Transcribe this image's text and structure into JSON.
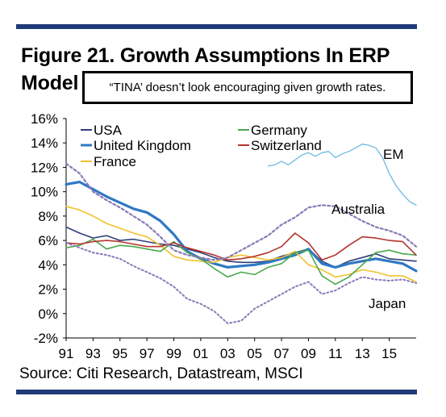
{
  "figure": {
    "title_line1": "Figure 21. Growth Assumptions In ERP",
    "title_line2": "Model",
    "callout": "“TINA’ doesn’t look encouraging given growth rates.",
    "source": "Source: Citi Research, Datastream, MSCI",
    "rule_color": "#1f3a78"
  },
  "chart_data": {
    "type": "line",
    "title": "",
    "xlabel": "",
    "ylabel": "",
    "xlim": [
      1991,
      2017
    ],
    "ylim": [
      -2,
      16
    ],
    "yticks": [
      "16%",
      "14%",
      "12%",
      "10%",
      "8%",
      "6%",
      "4%",
      "2%",
      "0%",
      "-2%"
    ],
    "xticks": [
      "91",
      "93",
      "95",
      "97",
      "99",
      "01",
      "03",
      "05",
      "07",
      "09",
      "11",
      "13",
      "15"
    ],
    "grid": false,
    "legend": [
      {
        "name": "USA",
        "color": "#2e3f7a"
      },
      {
        "name": "United Kingdom",
        "color": "#2f78c4"
      },
      {
        "name": "France",
        "color": "#f2c12e"
      },
      {
        "name": "Germany",
        "color": "#4aa84c"
      },
      {
        "name": "Switzerland",
        "color": "#b5342e"
      }
    ],
    "annotations": [
      "EM",
      "Australia",
      "Japan"
    ],
    "series": [
      {
        "name": "USA",
        "color": "#2e3f7a",
        "dash": "",
        "width": 1.6,
        "x": [
          1991,
          1992,
          1993,
          1994,
          1995,
          1996,
          1997,
          1998,
          1999,
          2000,
          2001,
          2002,
          2003,
          2004,
          2005,
          2006,
          2007,
          2008,
          2009,
          2010,
          2011,
          2012,
          2013,
          2014,
          2015,
          2016,
          2017
        ],
        "y": [
          7.1,
          6.6,
          6.2,
          6.4,
          6.0,
          6.1,
          5.9,
          5.7,
          5.6,
          5.3,
          5.0,
          4.6,
          4.3,
          4.2,
          4.2,
          4.3,
          4.7,
          5.0,
          5.3,
          4.3,
          3.8,
          4.3,
          4.6,
          4.9,
          4.5,
          4.4,
          4.3
        ]
      },
      {
        "name": "United Kingdom",
        "color": "#2f78c4",
        "dash": "",
        "width": 3.2,
        "x": [
          1991,
          1992,
          1993,
          1994,
          1995,
          1996,
          1997,
          1998,
          1999,
          2000,
          2001,
          2002,
          2003,
          2004,
          2005,
          2006,
          2007,
          2008,
          2009,
          2010,
          2011,
          2012,
          2013,
          2014,
          2015,
          2016,
          2017
        ],
        "y": [
          10.6,
          10.8,
          10.2,
          9.6,
          9.1,
          8.6,
          8.3,
          7.6,
          6.5,
          5.1,
          4.5,
          4.1,
          3.8,
          3.9,
          4.0,
          4.2,
          4.5,
          4.8,
          5.3,
          4.1,
          3.8,
          4.1,
          4.3,
          4.5,
          4.3,
          4.1,
          3.5
        ]
      },
      {
        "name": "France",
        "color": "#f2c12e",
        "dash": "",
        "width": 1.6,
        "x": [
          1991,
          1992,
          1993,
          1994,
          1995,
          1996,
          1997,
          1998,
          1999,
          2000,
          2001,
          2002,
          2003,
          2004,
          2005,
          2006,
          2007,
          2008,
          2009,
          2010,
          2011,
          2012,
          2013,
          2014,
          2015,
          2016,
          2017
        ],
        "y": [
          8.8,
          8.5,
          8.0,
          7.4,
          7.0,
          6.6,
          6.3,
          5.6,
          4.7,
          4.4,
          4.3,
          4.2,
          4.6,
          4.8,
          4.6,
          4.4,
          4.6,
          5.1,
          4.0,
          3.6,
          3.0,
          3.2,
          3.6,
          3.4,
          3.1,
          3.1,
          2.6
        ]
      },
      {
        "name": "Germany",
        "color": "#4aa84c",
        "dash": "",
        "width": 1.6,
        "x": [
          1991,
          1992,
          1993,
          1994,
          1995,
          1996,
          1997,
          1998,
          1999,
          2000,
          2001,
          2002,
          2003,
          2004,
          2005,
          2006,
          2007,
          2008,
          2009,
          2010,
          2011,
          2012,
          2013,
          2014,
          2015,
          2016,
          2017
        ],
        "y": [
          5.4,
          5.6,
          6.1,
          5.3,
          5.6,
          5.5,
          5.3,
          5.1,
          5.9,
          5.0,
          4.5,
          3.7,
          3.0,
          3.4,
          3.2,
          3.8,
          4.1,
          5.0,
          5.2,
          3.1,
          2.4,
          3.0,
          4.0,
          5.0,
          5.2,
          4.9,
          4.8
        ]
      },
      {
        "name": "Switzerland",
        "color": "#b5342e",
        "dash": "",
        "width": 1.6,
        "x": [
          1991,
          1992,
          1993,
          1994,
          1995,
          1996,
          1997,
          1998,
          1999,
          2000,
          2001,
          2002,
          2003,
          2004,
          2005,
          2006,
          2007,
          2008,
          2009,
          2010,
          2011,
          2012,
          2013,
          2014,
          2015,
          2016,
          2017
        ],
        "y": [
          5.8,
          5.7,
          5.9,
          6.0,
          5.9,
          5.7,
          5.5,
          5.5,
          5.8,
          5.4,
          5.1,
          4.8,
          4.4,
          4.5,
          4.7,
          5.0,
          5.5,
          6.6,
          5.8,
          4.4,
          4.8,
          5.6,
          6.3,
          6.2,
          6.0,
          5.9,
          4.8
        ]
      },
      {
        "name": "Australia",
        "color": "#8a78b8",
        "dash": "3,3",
        "width": 2.2,
        "x": [
          1991,
          1992,
          1993,
          1994,
          1995,
          1996,
          1997,
          1998,
          1999,
          2000,
          2001,
          2002,
          2003,
          2004,
          2005,
          2006,
          2007,
          2008,
          2009,
          2010,
          2011,
          2012,
          2013,
          2014,
          2015,
          2016,
          2017
        ],
        "y": [
          12.3,
          11.5,
          10.0,
          9.3,
          8.7,
          8.0,
          7.3,
          6.3,
          5.2,
          4.8,
          4.6,
          4.4,
          4.6,
          5.2,
          5.8,
          6.4,
          7.3,
          7.9,
          8.7,
          8.9,
          8.8,
          8.2,
          7.6,
          7.1,
          6.8,
          6.4,
          5.5
        ]
      },
      {
        "name": "Japan",
        "color": "#8a78b8",
        "dash": "2,3",
        "width": 2.0,
        "x": [
          1991,
          1992,
          1993,
          1994,
          1995,
          1996,
          1997,
          1998,
          1999,
          2000,
          2001,
          2002,
          2003,
          2004,
          2005,
          2006,
          2007,
          2008,
          2009,
          2010,
          2011,
          2012,
          2013,
          2014,
          2015,
          2016,
          2017
        ],
        "y": [
          5.8,
          5.4,
          5.0,
          4.8,
          4.5,
          3.9,
          3.4,
          2.9,
          2.2,
          1.2,
          0.8,
          0.2,
          -0.8,
          -0.6,
          0.4,
          1.0,
          1.6,
          2.2,
          2.6,
          1.6,
          1.9,
          2.5,
          3.0,
          2.8,
          2.7,
          2.8,
          2.5
        ]
      },
      {
        "name": "EM",
        "color": "#6bbbe3",
        "dash": "",
        "width": 1.3,
        "x": [
          2006.0,
          2006.5,
          2007.0,
          2007.5,
          2008.0,
          2008.5,
          2009.0,
          2009.5,
          2010.0,
          2010.5,
          2011.0,
          2011.5,
          2012.0,
          2012.5,
          2013.0,
          2013.5,
          2014.0,
          2014.5,
          2015.0,
          2015.5,
          2016.0,
          2016.5,
          2017.0
        ],
        "y": [
          12.1,
          12.2,
          12.5,
          12.2,
          12.6,
          13.0,
          13.2,
          12.9,
          13.2,
          13.3,
          12.8,
          13.1,
          13.3,
          13.6,
          13.9,
          13.8,
          13.6,
          12.8,
          11.5,
          10.5,
          9.8,
          9.2,
          8.9
        ]
      }
    ]
  }
}
